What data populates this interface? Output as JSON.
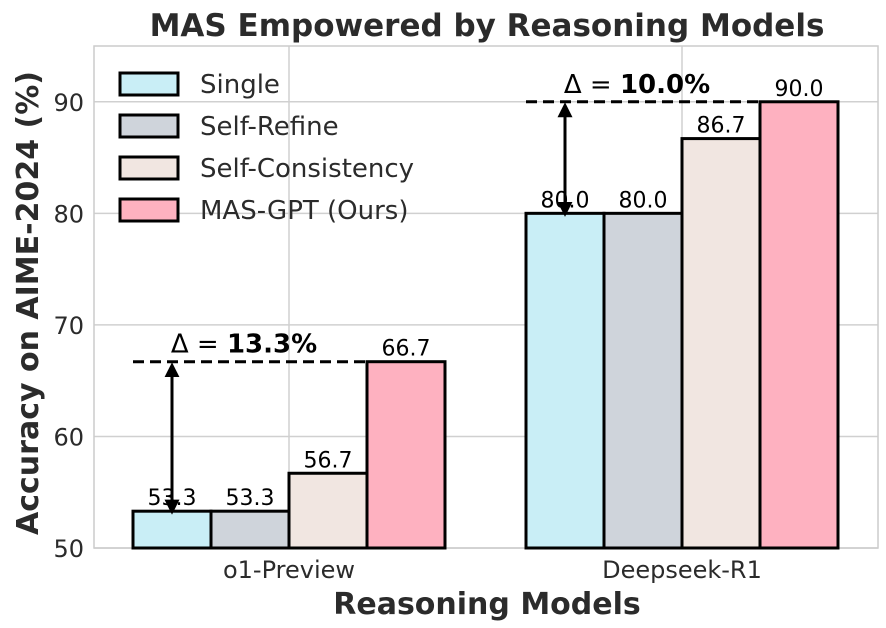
{
  "chart_data": {
    "type": "bar",
    "title": "MAS Empowered by Reasoning Models",
    "xlabel": "Reasoning Models",
    "ylabel": "Accuracy on AIME-2024 (%)",
    "categories": [
      "o1-Preview",
      "Deepseek-R1"
    ],
    "ylim": [
      50,
      95
    ],
    "yticks": [
      50,
      60,
      70,
      80,
      90
    ],
    "grid": true,
    "legend_position": "top-left",
    "series": [
      {
        "name": "Single",
        "color": "#c9eef6",
        "values": [
          53.3,
          80.0
        ],
        "labels": [
          "53.3",
          "80.0"
        ]
      },
      {
        "name": "Self-Refine",
        "color": "#cfd4db",
        "values": [
          53.3,
          80.0
        ],
        "labels": [
          "53.3",
          "80.0"
        ]
      },
      {
        "name": "Self-Consistency",
        "color": "#f1e6e1",
        "values": [
          56.7,
          86.7
        ],
        "labels": [
          "56.7",
          "86.7"
        ]
      },
      {
        "name": "MAS-GPT (Ours)",
        "color": "#feb1c0",
        "values": [
          66.7,
          90.0
        ],
        "labels": [
          "66.7",
          "90.0"
        ]
      }
    ],
    "annotations": [
      {
        "category_index": 0,
        "from": 53.3,
        "to": 66.7,
        "prefix": "Δ = ",
        "text": "13.3%"
      },
      {
        "category_index": 1,
        "from": 80.0,
        "to": 90.0,
        "prefix": "Δ = ",
        "text": "10.0%"
      }
    ]
  }
}
